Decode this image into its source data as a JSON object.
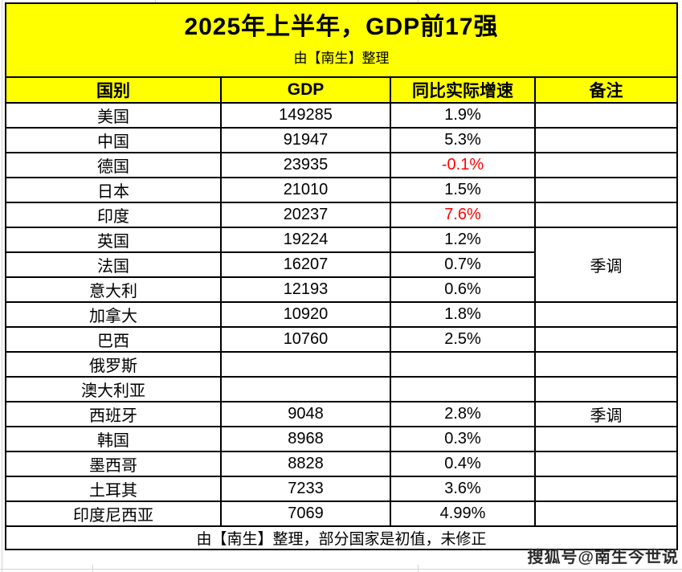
{
  "chart_data": {
    "type": "table",
    "title": "2025年上半年，GDP前17强",
    "subtitle": "由【南生】整理",
    "columns": [
      "国别",
      "GDP",
      "同比实际增速",
      "备注"
    ],
    "rows": [
      {
        "country": "美国",
        "gdp": "149285",
        "growth": "1.9%",
        "growth_red": false,
        "note": {
          "text": "",
          "rowspan": 1
        }
      },
      {
        "country": "中国",
        "gdp": "91947",
        "growth": "5.3%",
        "growth_red": false,
        "note": {
          "text": "",
          "rowspan": 1
        }
      },
      {
        "country": "德国",
        "gdp": "23935",
        "growth": "-0.1%",
        "growth_red": true,
        "note": {
          "text": "",
          "rowspan": 1
        }
      },
      {
        "country": "日本",
        "gdp": "21010",
        "growth": "1.5%",
        "growth_red": false,
        "note": {
          "text": "",
          "rowspan": 1
        }
      },
      {
        "country": "印度",
        "gdp": "20237",
        "growth": "7.6%",
        "growth_red": true,
        "note": {
          "text": "",
          "rowspan": 1
        }
      },
      {
        "country": "英国",
        "gdp": "19224",
        "growth": "1.2%",
        "growth_red": false,
        "note": {
          "text": "季调",
          "rowspan": 3
        }
      },
      {
        "country": "法国",
        "gdp": "16207",
        "growth": "0.7%",
        "growth_red": false,
        "note": null
      },
      {
        "country": "意大利",
        "gdp": "12193",
        "growth": "0.6%",
        "growth_red": false,
        "note": null
      },
      {
        "country": "加拿大",
        "gdp": "10920",
        "growth": "1.8%",
        "growth_red": false,
        "note": {
          "text": "",
          "rowspan": 1
        }
      },
      {
        "country": "巴西",
        "gdp": "10760",
        "growth": "2.5%",
        "growth_red": false,
        "note": {
          "text": "",
          "rowspan": 1
        }
      },
      {
        "country": "俄罗斯",
        "gdp": "",
        "growth": "",
        "growth_red": false,
        "note": {
          "text": "",
          "rowspan": 1
        }
      },
      {
        "country": "澳大利亚",
        "gdp": "",
        "growth": "",
        "growth_red": false,
        "note": {
          "text": "",
          "rowspan": 1
        }
      },
      {
        "country": "西班牙",
        "gdp": "9048",
        "growth": "2.8%",
        "growth_red": false,
        "note": {
          "text": "季调",
          "rowspan": 1
        }
      },
      {
        "country": "韩国",
        "gdp": "8968",
        "growth": "0.3%",
        "growth_red": false,
        "note": {
          "text": "",
          "rowspan": 1
        }
      },
      {
        "country": "墨西哥",
        "gdp": "8828",
        "growth": "0.4%",
        "growth_red": false,
        "note": {
          "text": "",
          "rowspan": 1
        }
      },
      {
        "country": "土耳其",
        "gdp": "7233",
        "growth": "3.6%",
        "growth_red": false,
        "note": {
          "text": "",
          "rowspan": 1
        }
      },
      {
        "country": "印度尼西亚",
        "gdp": "7069",
        "growth": "4.99%",
        "growth_red": false,
        "note": {
          "text": "",
          "rowspan": 1
        }
      }
    ],
    "footer": "由【南生】整理，部分国家是初值，未修正",
    "watermark": "搜狐号@南生今世说",
    "layout_hints": {
      "grid": true,
      "merged_note_cell": {
        "text": "季调",
        "covers_rows": [
          "英国",
          "法国",
          "意大利"
        ]
      }
    }
  },
  "colors": {
    "header_bg": "#ffff00",
    "negative_or_highlight_growth": "#ff0000",
    "text": "#000000",
    "border": "#000000"
  }
}
